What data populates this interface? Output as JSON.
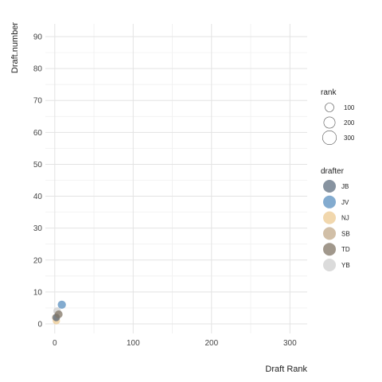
{
  "chart_data": {
    "type": "scatter",
    "xlabel": "Draft Rank",
    "ylabel": "Draft.number",
    "xlim": [
      -12,
      322
    ],
    "ylim": [
      -3,
      94
    ],
    "x_ticks": [
      0,
      100,
      200,
      300
    ],
    "y_ticks": [
      0,
      10,
      20,
      30,
      40,
      50,
      60,
      70,
      80,
      90
    ],
    "grid": true,
    "legend_placement": "right",
    "size_legend": {
      "title": "rank",
      "entries": [
        {
          "label": "100",
          "value": 100
        },
        {
          "label": "200",
          "value": 200
        },
        {
          "label": "300",
          "value": 300
        }
      ]
    },
    "color_legend": {
      "title": "drafter",
      "entries": [
        {
          "label": "JB",
          "color": "#5f6f80"
        },
        {
          "label": "JV",
          "color": "#5a8fbf"
        },
        {
          "label": "NJ",
          "color": "#ecc991"
        },
        {
          "label": "SB",
          "color": "#c1aa8a"
        },
        {
          "label": "TD",
          "color": "#827566"
        },
        {
          "label": "YB",
          "color": "#cfcfcf"
        }
      ]
    },
    "points": [
      {
        "x": 3,
        "y": 4,
        "drafter": "YB",
        "rank": 4
      },
      {
        "x": 2,
        "y": 1,
        "drafter": "NJ",
        "rank": 2
      },
      {
        "x": 1,
        "y": 2,
        "drafter": "SB",
        "rank": 1
      },
      {
        "x": 2,
        "y": 2,
        "drafter": "JB",
        "rank": 2
      },
      {
        "x": 5,
        "y": 3,
        "drafter": "TD",
        "rank": 5
      },
      {
        "x": 9,
        "y": 6,
        "drafter": "JV",
        "rank": 9
      }
    ]
  }
}
